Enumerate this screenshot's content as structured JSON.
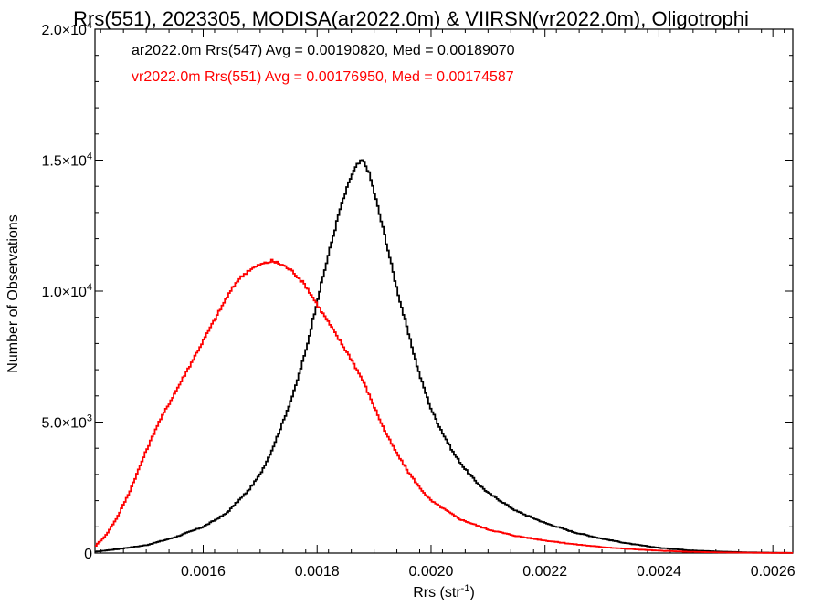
{
  "chart_data": {
    "type": "line",
    "title": "Rrs(551), 2023305, MODISA(ar2022.0m) & VIIRSN(vr2022.0m), Oligotrophi",
    "xlabel": "Rrs (str",
    "xlabel_sup": "-1",
    "xlabel_close": ")",
    "ylabel": "Number of Observations",
    "xlim": [
      0.00141,
      0.002635
    ],
    "ylim": [
      0,
      20000
    ],
    "grid": false,
    "x_ticks": [
      {
        "value": 0.0016,
        "label": "0.0016"
      },
      {
        "value": 0.0018,
        "label": "0.0018"
      },
      {
        "value": 0.002,
        "label": "0.0020"
      },
      {
        "value": 0.0022,
        "label": "0.0022"
      },
      {
        "value": 0.0024,
        "label": "0.0024"
      },
      {
        "value": 0.0026,
        "label": "0.0026"
      }
    ],
    "y_ticks": [
      {
        "value": 0,
        "label": "0",
        "sup": ""
      },
      {
        "value": 5000,
        "label": "5.0×10",
        "sup": "3"
      },
      {
        "value": 10000,
        "label": "1.0×10",
        "sup": "4"
      },
      {
        "value": 15000,
        "label": "1.5×10",
        "sup": "4"
      },
      {
        "value": 20000,
        "label": "2.0×10",
        "sup": "4"
      }
    ],
    "annotations": [
      {
        "text": "ar2022.0m Rrs(547) Avg = 0.00190820, Med = 0.00189070",
        "color": "#000000"
      },
      {
        "text": "vr2022.0m Rrs(551) Avg = 0.00176950, Med = 0.00174587",
        "color": "#ff0000"
      }
    ],
    "series": [
      {
        "color": "#000000",
        "x": [
          0.00141,
          0.00145,
          0.0015,
          0.00155,
          0.0016,
          0.00164,
          0.00168,
          0.0017,
          0.00172,
          0.00174,
          0.00176,
          0.00178,
          0.0018,
          0.00182,
          0.00184,
          0.00186,
          0.00187,
          0.00188,
          0.00189,
          0.0019,
          0.00192,
          0.00194,
          0.00196,
          0.00198,
          0.002,
          0.00202,
          0.00204,
          0.00206,
          0.00208,
          0.0021,
          0.00215,
          0.0022,
          0.00225,
          0.0023,
          0.00235,
          0.0024,
          0.00245,
          0.0025,
          0.00255,
          0.0026,
          0.002635
        ],
        "y": [
          50,
          150,
          300,
          600,
          1000,
          1500,
          2400,
          3000,
          3900,
          5000,
          6200,
          7700,
          9600,
          11400,
          13100,
          14400,
          14800,
          15000,
          14600,
          13800,
          12000,
          10100,
          8400,
          6800,
          5500,
          4600,
          3800,
          3200,
          2700,
          2300,
          1600,
          1150,
          800,
          550,
          350,
          200,
          110,
          60,
          30,
          10,
          5
        ]
      },
      {
        "color": "#ff0000",
        "x": [
          0.00141,
          0.00143,
          0.00145,
          0.00147,
          0.0015,
          0.00152,
          0.00155,
          0.00158,
          0.0016,
          0.00162,
          0.00164,
          0.00166,
          0.00168,
          0.0017,
          0.00172,
          0.00174,
          0.00176,
          0.00178,
          0.0018,
          0.00182,
          0.00184,
          0.00186,
          0.00188,
          0.0019,
          0.00192,
          0.00194,
          0.00196,
          0.00198,
          0.002,
          0.00205,
          0.0021,
          0.00215,
          0.0022,
          0.00225,
          0.0023,
          0.00235,
          0.0024,
          0.00245,
          0.0025,
          0.0026
        ],
        "y": [
          250,
          700,
          1400,
          2300,
          3900,
          4900,
          6100,
          7300,
          8100,
          8900,
          9700,
          10400,
          10800,
          11000,
          11150,
          11000,
          10700,
          10200,
          9500,
          8800,
          8100,
          7400,
          6600,
          5600,
          4600,
          3800,
          3100,
          2500,
          2000,
          1300,
          900,
          650,
          480,
          340,
          230,
          150,
          90,
          50,
          25,
          5
        ]
      }
    ]
  }
}
